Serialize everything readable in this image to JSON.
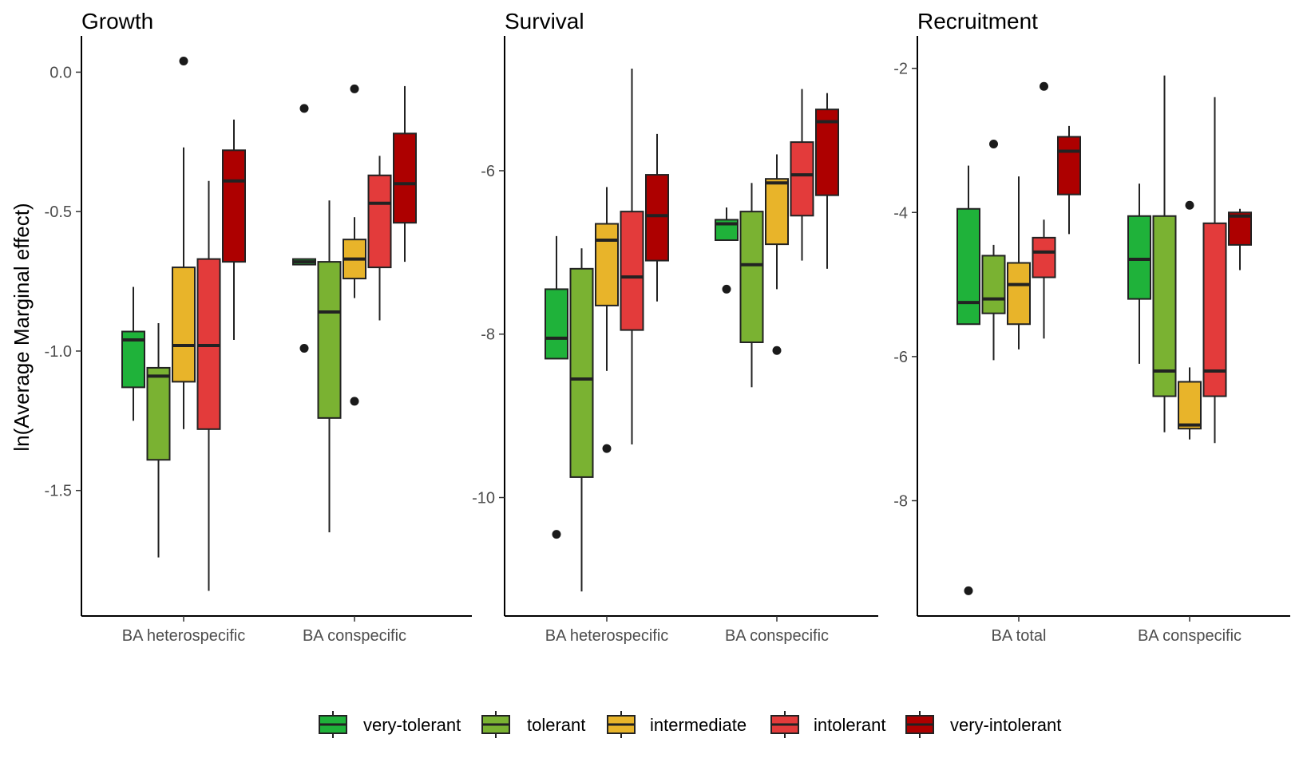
{
  "chart_data": {
    "type": "boxplot",
    "ylabel": "ln(Average Marginal effect)",
    "legend": {
      "placement": "bottom",
      "entries": [
        "very-tolerant",
        "tolerant",
        "intermediate",
        "intolerant",
        "very-intolerant"
      ]
    },
    "colors": {
      "very-tolerant": "#1fb23a",
      "tolerant": "#7ab232",
      "intermediate": "#e8b42a",
      "intolerant": "#e33b3b",
      "very-intolerant": "#ad0000"
    },
    "panels": [
      {
        "title": "Growth",
        "yticks": [
          0.0,
          -0.5,
          -1.0,
          -1.5
        ],
        "ytick_labels": [
          "0.0",
          "-0.5",
          "-1.0",
          "-1.5"
        ],
        "ylim": [
          -1.95,
          0.13
        ],
        "categories": [
          "BA heterospecific",
          "BA conspecific"
        ],
        "groups": [
          {
            "category": "BA heterospecific",
            "boxes": [
              {
                "series": "very-tolerant",
                "whisker_low": -1.25,
                "q1": -1.13,
                "median": -0.96,
                "q3": -0.93,
                "whisker_high": -0.77,
                "outliers": []
              },
              {
                "series": "tolerant",
                "whisker_low": -1.74,
                "q1": -1.39,
                "median": -1.09,
                "q3": -1.06,
                "whisker_high": -0.9,
                "outliers": []
              },
              {
                "series": "intermediate",
                "whisker_low": -1.28,
                "q1": -1.11,
                "median": -0.98,
                "q3": -0.7,
                "whisker_high": -0.27,
                "outliers": [
                  0.04
                ]
              },
              {
                "series": "intolerant",
                "whisker_low": -1.86,
                "q1": -1.28,
                "median": -0.98,
                "q3": -0.67,
                "whisker_high": -0.39,
                "outliers": []
              },
              {
                "series": "very-intolerant",
                "whisker_low": -0.96,
                "q1": -0.68,
                "median": -0.39,
                "q3": -0.28,
                "whisker_high": -0.17,
                "outliers": []
              }
            ]
          },
          {
            "category": "BA conspecific",
            "boxes": [
              {
                "series": "very-tolerant",
                "whisker_low": -0.69,
                "q1": -0.69,
                "median": -0.68,
                "q3": -0.67,
                "whisker_high": -0.67,
                "outliers": [
                  -0.13,
                  -0.99
                ]
              },
              {
                "series": "tolerant",
                "whisker_low": -1.65,
                "q1": -1.24,
                "median": -0.86,
                "q3": -0.68,
                "whisker_high": -0.46,
                "outliers": []
              },
              {
                "series": "intermediate",
                "whisker_low": -0.81,
                "q1": -0.74,
                "median": -0.67,
                "q3": -0.6,
                "whisker_high": -0.52,
                "outliers": [
                  -0.06,
                  -1.18
                ]
              },
              {
                "series": "intolerant",
                "whisker_low": -0.89,
                "q1": -0.7,
                "median": -0.47,
                "q3": -0.37,
                "whisker_high": -0.3,
                "outliers": []
              },
              {
                "series": "very-intolerant",
                "whisker_low": -0.68,
                "q1": -0.54,
                "median": -0.4,
                "q3": -0.22,
                "whisker_high": -0.05,
                "outliers": []
              }
            ]
          }
        ]
      },
      {
        "title": "Survival",
        "yticks": [
          -6,
          -8,
          -10
        ],
        "ytick_labels": [
          "-6",
          "-8",
          "-10"
        ],
        "ylim": [
          -11.45,
          -4.35
        ],
        "categories": [
          "BA heterospecific",
          "BA conspecific"
        ],
        "groups": [
          {
            "category": "BA heterospecific",
            "boxes": [
              {
                "series": "very-tolerant",
                "whisker_low": -8.3,
                "q1": -8.3,
                "median": -8.05,
                "q3": -7.45,
                "whisker_high": -6.8,
                "outliers": [
                  -10.45
                ]
              },
              {
                "series": "tolerant",
                "whisker_low": -11.15,
                "q1": -9.75,
                "median": -8.55,
                "q3": -7.2,
                "whisker_high": -6.95,
                "outliers": []
              },
              {
                "series": "intermediate",
                "whisker_low": -8.45,
                "q1": -7.65,
                "median": -6.85,
                "q3": -6.65,
                "whisker_high": -6.2,
                "outliers": [
                  -9.4
                ]
              },
              {
                "series": "intolerant",
                "whisker_low": -9.35,
                "q1": -7.95,
                "median": -7.3,
                "q3": -6.5,
                "whisker_high": -4.75,
                "outliers": []
              },
              {
                "series": "very-intolerant",
                "whisker_low": -7.6,
                "q1": -7.1,
                "median": -6.55,
                "q3": -6.05,
                "whisker_high": -5.55,
                "outliers": []
              }
            ]
          },
          {
            "category": "BA conspecific",
            "boxes": [
              {
                "series": "very-tolerant",
                "whisker_low": -6.85,
                "q1": -6.85,
                "median": -6.65,
                "q3": -6.6,
                "whisker_high": -6.45,
                "outliers": [
                  -7.45
                ]
              },
              {
                "series": "tolerant",
                "whisker_low": -8.65,
                "q1": -8.1,
                "median": -7.15,
                "q3": -6.5,
                "whisker_high": -6.15,
                "outliers": []
              },
              {
                "series": "intermediate",
                "whisker_low": -7.45,
                "q1": -6.9,
                "median": -6.15,
                "q3": -6.1,
                "whisker_high": -5.8,
                "outliers": [
                  -8.2
                ]
              },
              {
                "series": "intolerant",
                "whisker_low": -7.1,
                "q1": -6.55,
                "median": -6.05,
                "q3": -5.65,
                "whisker_high": -5.0,
                "outliers": []
              },
              {
                "series": "very-intolerant",
                "whisker_low": -7.2,
                "q1": -6.3,
                "median": -5.4,
                "q3": -5.25,
                "whisker_high": -5.05,
                "outliers": []
              }
            ]
          }
        ]
      },
      {
        "title": "Recruitment",
        "yticks": [
          -2,
          -4,
          -6,
          -8
        ],
        "ytick_labels": [
          "-2",
          "-4",
          "-6",
          "-8"
        ],
        "ylim": [
          -9.6,
          -1.55
        ],
        "categories": [
          "BA total",
          "BA conspecific"
        ],
        "groups": [
          {
            "category": "BA total",
            "boxes": [
              {
                "series": "very-tolerant",
                "whisker_low": -5.55,
                "q1": -5.55,
                "median": -5.25,
                "q3": -3.95,
                "whisker_high": -3.35,
                "outliers": [
                  -9.25
                ]
              },
              {
                "series": "tolerant",
                "whisker_low": -6.05,
                "q1": -5.4,
                "median": -5.2,
                "q3": -4.6,
                "whisker_high": -4.45,
                "outliers": [
                  -3.05
                ]
              },
              {
                "series": "intermediate",
                "whisker_low": -5.9,
                "q1": -5.55,
                "median": -5.0,
                "q3": -4.7,
                "whisker_high": -3.5,
                "outliers": []
              },
              {
                "series": "intolerant",
                "whisker_low": -5.75,
                "q1": -4.9,
                "median": -4.55,
                "q3": -4.35,
                "whisker_high": -4.1,
                "outliers": [
                  -2.25
                ]
              },
              {
                "series": "very-intolerant",
                "whisker_low": -4.3,
                "q1": -3.75,
                "median": -3.15,
                "q3": -2.95,
                "whisker_high": -2.8,
                "outliers": []
              }
            ]
          },
          {
            "category": "BA conspecific",
            "boxes": [
              {
                "series": "very-tolerant",
                "whisker_low": -6.1,
                "q1": -5.2,
                "median": -4.65,
                "q3": -4.05,
                "whisker_high": -3.6,
                "outliers": []
              },
              {
                "series": "tolerant",
                "whisker_low": -7.05,
                "q1": -6.55,
                "median": -6.2,
                "q3": -4.05,
                "whisker_high": -2.1,
                "outliers": []
              },
              {
                "series": "intermediate",
                "whisker_low": -7.15,
                "q1": -7.0,
                "median": -6.95,
                "q3": -6.35,
                "whisker_high": -6.15,
                "outliers": [
                  -3.9
                ]
              },
              {
                "series": "intolerant",
                "whisker_low": -7.2,
                "q1": -6.55,
                "median": -6.2,
                "q3": -4.15,
                "whisker_high": -2.4,
                "outliers": []
              },
              {
                "series": "very-intolerant",
                "whisker_low": -4.8,
                "q1": -4.45,
                "median": -4.05,
                "q3": -4.0,
                "whisker_high": -3.95,
                "outliers": []
              }
            ]
          }
        ]
      }
    ]
  }
}
